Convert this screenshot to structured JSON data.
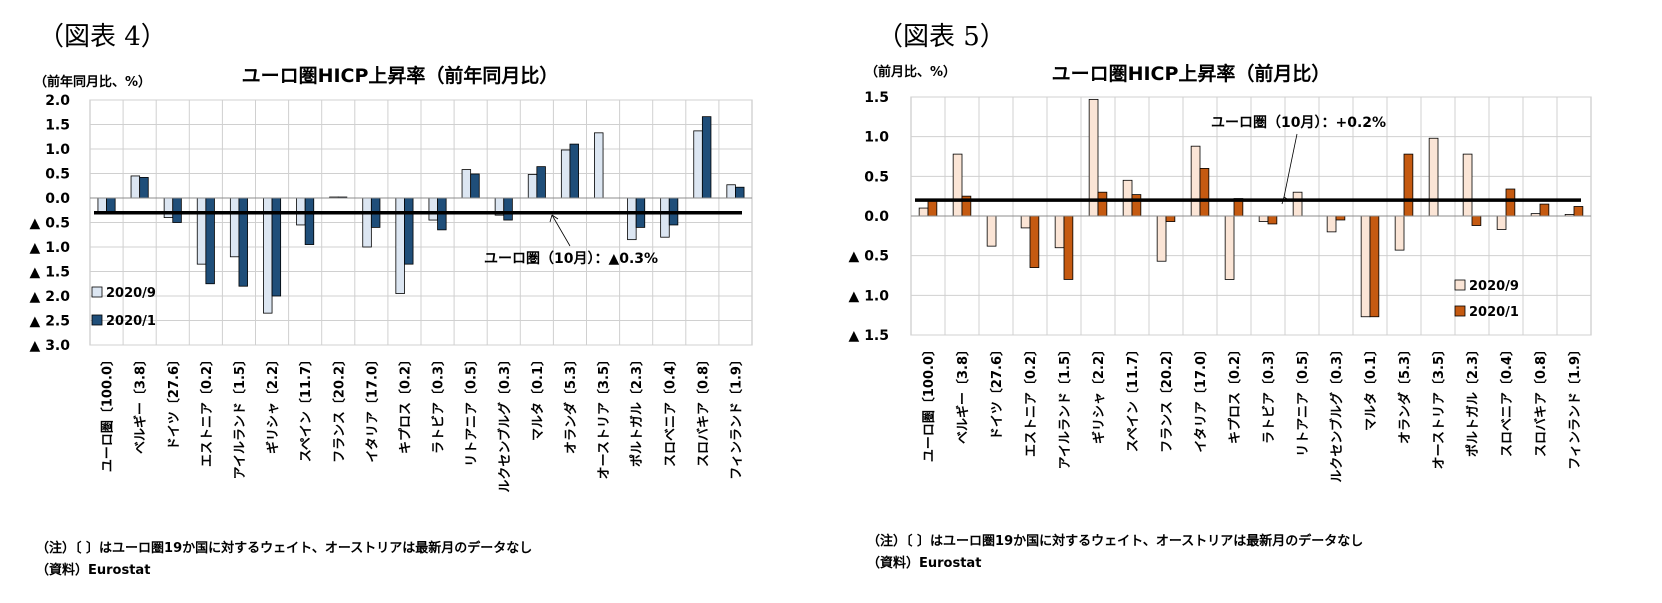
{
  "figures": [
    {
      "label": "（図表 4）",
      "notes": [
        "（注）〔 〕はユーロ圏19か国に対するウェイト、オーストリアは最新月のデータなし",
        "（資料）Eurostat"
      ],
      "chart_data": {
        "type": "bar",
        "title": "ユーロ圏HICP上昇率（前年同月比）",
        "ylabel": "（前年同月比、%）",
        "ylim": [
          -3.0,
          2.0
        ],
        "yticks": [
          2.0,
          1.5,
          1.0,
          0.5,
          0.0,
          -0.5,
          -1.0,
          -1.5,
          -2.0,
          -2.5,
          -3.0
        ],
        "ytick_labels": [
          "2.0",
          "1.5",
          "1.0",
          "0.5",
          "0.0",
          "▲ 0.5",
          "▲ 1.0",
          "▲ 1.5",
          "▲ 2.0",
          "▲ 2.5",
          "▲ 3.0"
        ],
        "grid": true,
        "legend_position": "bottom-left",
        "categories": [
          "ユーロ圏〔100.0〕",
          "ベルギー〔3.8〕",
          "ドイツ〔27.6〕",
          "エストニア〔0.2〕",
          "アイルランド〔1.5〕",
          "ギリシャ〔2.2〕",
          "スペイン〔11.7〕",
          "フランス〔20.2〕",
          "イタリア〔17.0〕",
          "キプロス〔0.2〕",
          "ラトビア〔0.3〕",
          "リトアニア〔0.5〕",
          "ルクセンブルグ〔0.3〕",
          "マルタ〔0.1〕",
          "オランダ〔5.3〕",
          "オーストリア〔3.5〕",
          "ポルトガル〔2.3〕",
          "スロベニア〔0.4〕",
          "スロバキア〔0.8〕",
          "フィンランド〔1.9〕"
        ],
        "series": [
          {
            "name": "2020/9",
            "color": "#dce6f2",
            "values": [
              -0.3,
              0.45,
              -0.4,
              -1.35,
              -1.2,
              -2.35,
              -0.55,
              0.02,
              -1.0,
              -1.95,
              -0.45,
              0.58,
              -0.35,
              0.48,
              0.98,
              1.33,
              -0.85,
              -0.8,
              1.37,
              0.27
            ]
          },
          {
            "name": "2020/1",
            "color": "#1f4e79",
            "values": [
              -0.3,
              0.42,
              -0.5,
              -1.75,
              -1.8,
              -2.0,
              -0.95,
              0.02,
              -0.6,
              -1.35,
              -0.65,
              0.49,
              -0.45,
              0.64,
              1.1,
              null,
              -0.6,
              -0.55,
              1.66,
              0.22
            ]
          }
        ],
        "reference_line": {
          "value": -0.3,
          "label": "ユーロ圏（10月）：▲0.3%"
        }
      }
    },
    {
      "label": "（図表 5）",
      "notes": [
        "（注）〔 〕はユーロ圏19か国に対するウェイト、オーストリアは最新月のデータなし",
        "（資料）Eurostat"
      ],
      "chart_data": {
        "type": "bar",
        "title": "ユーロ圏HICP上昇率（前月比）",
        "ylabel": "（前月比、%）",
        "ylim": [
          -1.5,
          1.5
        ],
        "yticks": [
          1.5,
          1.0,
          0.5,
          0.0,
          -0.5,
          -1.0,
          -1.5
        ],
        "ytick_labels": [
          "1.5",
          "1.0",
          "0.5",
          "0.0",
          "▲ 0.5",
          "▲ 1.0",
          "▲ 1.5"
        ],
        "grid": true,
        "legend_position": "bottom-right",
        "categories": [
          "ユーロ圏〔100.0〕",
          "ベルギー〔3.8〕",
          "ドイツ〔27.6〕",
          "エストニア〔0.2〕",
          "アイルランド〔1.5〕",
          "ギリシャ〔2.2〕",
          "スペイン〔11.7〕",
          "フランス〔20.2〕",
          "イタリア〔17.0〕",
          "キプロス〔0.2〕",
          "ラトビア〔0.3〕",
          "リトアニア〔0.5〕",
          "ルクセンブルグ〔0.3〕",
          "マルタ〔0.1〕",
          "オランダ〔5.3〕",
          "オーストリア〔3.5〕",
          "ポルトガル〔2.3〕",
          "スロベニア〔0.4〕",
          "スロバキア〔0.8〕",
          "フィンランド〔1.9〕"
        ],
        "series": [
          {
            "name": "2020/9",
            "color": "#fbe5d6",
            "values": [
              0.1,
              0.78,
              -0.38,
              -0.15,
              -0.4,
              1.47,
              0.45,
              -0.57,
              0.88,
              -0.8,
              -0.07,
              0.3,
              -0.2,
              -1.27,
              -0.43,
              0.98,
              0.78,
              -0.17,
              0.03,
              0.02
            ]
          },
          {
            "name": "2020/1",
            "color": "#c55a11",
            "values": [
              0.2,
              0.25,
              null,
              -0.65,
              -0.8,
              0.3,
              0.27,
              -0.07,
              0.6,
              0.22,
              -0.1,
              null,
              -0.05,
              -1.27,
              0.78,
              null,
              -0.12,
              0.34,
              0.15,
              0.12
            ]
          }
        ],
        "reference_line": {
          "value": 0.2,
          "label": "ユーロ圏（10月）：+0.2%"
        }
      }
    }
  ]
}
